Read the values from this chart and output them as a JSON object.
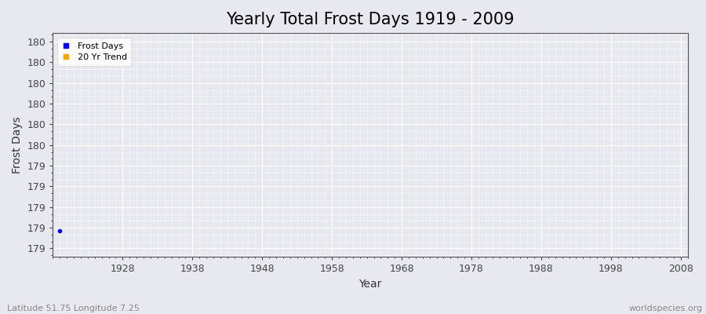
{
  "title": "Yearly Total Frost Days 1919 - 2009",
  "xlabel": "Year",
  "ylabel": "Frost Days",
  "subtitle": "Latitude 51.75 Longitude 7.25",
  "watermark": "worldspecies.org",
  "background_color": "#e8e8f0",
  "plot_bg_color": "#e8e8f0",
  "grid_color": "#ffffff",
  "years": [
    1919
  ],
  "frost_days": [
    179.0
  ],
  "frost_color": "#0000ff",
  "trend_color": "#ffa500",
  "legend_labels": [
    "Frost Days",
    "20 Yr Trend"
  ],
  "xlim": [
    1918,
    2009
  ],
  "ylim_min": 178.85,
  "ylim_max": 180.15,
  "ytick_positions": [
    178.9,
    179.0,
    179.1,
    179.2,
    179.3,
    179.4,
    179.5,
    179.6,
    179.7,
    179.8,
    179.9,
    180.0,
    180.1
  ],
  "ytick_labels": [
    "179",
    "179",
    "179",
    "179",
    "179",
    "179",
    "180",
    "180",
    "180",
    "180",
    "180",
    "180",
    "180"
  ],
  "xticks": [
    1928,
    1938,
    1948,
    1958,
    1968,
    1978,
    1988,
    1998,
    2008
  ],
  "title_fontsize": 15,
  "axis_label_fontsize": 10,
  "tick_fontsize": 9,
  "subtitle_fontsize": 8,
  "watermark_fontsize": 8
}
